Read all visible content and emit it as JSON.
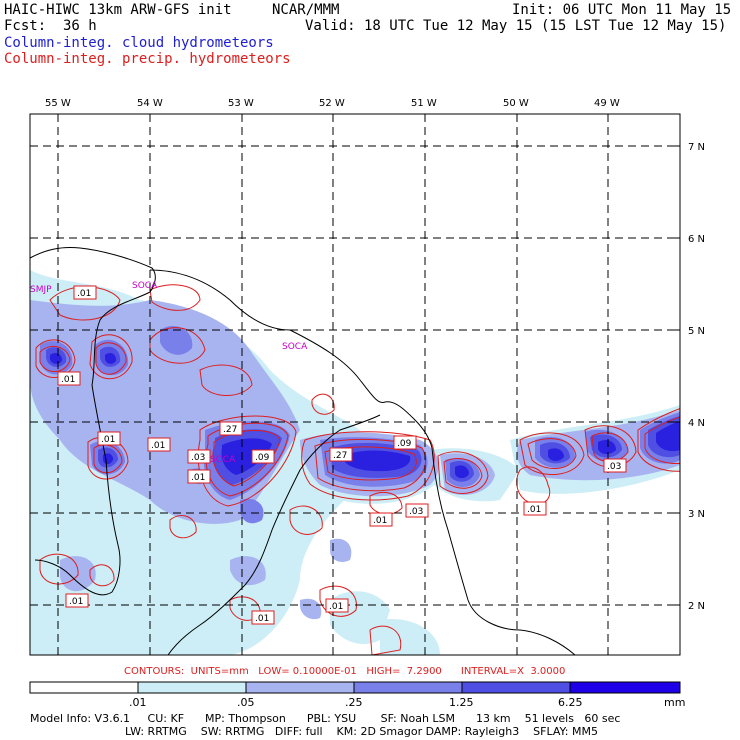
{
  "header": {
    "model_line": "HAIC-HIWC 13km ARW-GFS init",
    "org": "NCAR/MMM",
    "init": "Init: 06 UTC Mon 11 May 15",
    "fcst": "Fcst:  36 h",
    "valid": "Valid: 18 UTC Tue 12 May 15 (15 LST Tue 12 May 15)",
    "field_cloud": "Column-integ. cloud hydrometeors",
    "field_precip": "Column-integ. precip. hydrometeors"
  },
  "map": {
    "lon_labels": [
      "55 W",
      "54 W",
      "53 W",
      "52 W",
      "51 W",
      "50 W",
      "49 W"
    ],
    "lat_labels": [
      "7 N",
      "6 N",
      "5 N",
      "4 N",
      "3 N",
      "2 N"
    ],
    "place_labels": [
      "SMJP",
      "SOCA",
      "SOCA",
      "SOCA"
    ],
    "contour_labels": [
      ".01",
      ".01",
      ".01",
      ".01",
      ".27",
      ".03",
      ".09",
      ".01",
      ".27",
      ".09",
      ".03",
      ".01",
      ".03",
      ".01",
      ".01",
      ".01",
      ".01"
    ],
    "colors": {
      "shade1": "#cdeef6",
      "shade2": "#a8b4f0",
      "shade3": "#7a80ea",
      "shade4": "#4f4fe4",
      "shade5": "#2a20e0",
      "shade6": "#1e00e8",
      "contour": "#dc1e1e",
      "place": "#c800c8",
      "grid": "#000000"
    }
  },
  "contour_info": "CONTOURS:  UNITS=mm   LOW= 0.10000E-01   HIGH=  7.2900      INTERVAL=X  3.0000",
  "colorbar": {
    "ticks": [
      ".01",
      ".05",
      ".25",
      "1.25",
      "6.25"
    ],
    "units": "mm"
  },
  "model_info": {
    "line1": "Model Info: V3.6.1     CU: KF      MP: Thompson      PBL: YSU       SF: Noah LSM      13 km    51 levels   60 sec",
    "line2": "LW: RRTMG    SW: RRTMG   DIFF: full    KM: 2D Smagor DAMP: Rayleigh3    SFLAY: MM5"
  }
}
